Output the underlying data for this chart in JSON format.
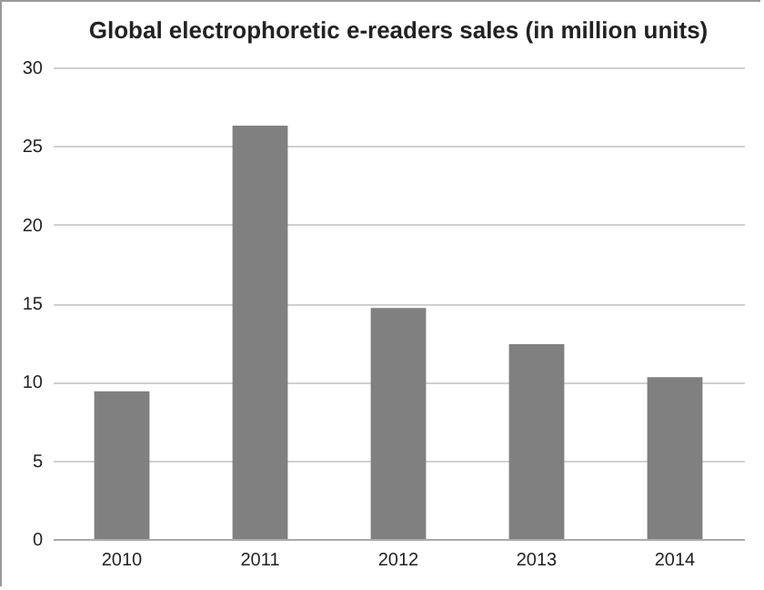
{
  "chart_data": {
    "type": "bar",
    "title": "Global electrophoretic e-readers sales (in million units)",
    "categories": [
      "2010",
      "2011",
      "2012",
      "2013",
      "2014"
    ],
    "values": [
      9.4,
      26.3,
      14.7,
      12.4,
      10.3
    ],
    "color": "#808080",
    "ylim": [
      0,
      30
    ],
    "yticks": [
      0,
      5,
      10,
      15,
      20,
      25,
      30
    ],
    "grid": "y"
  }
}
